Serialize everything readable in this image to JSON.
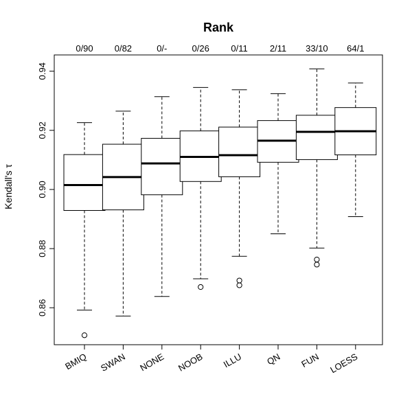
{
  "chart_data": {
    "type": "boxplot",
    "title": "Rank",
    "ylabel": "Kendall's τ",
    "xlabel": "",
    "ylim": [
      0.8475,
      0.9455
    ],
    "yticks": [
      "0.86",
      "0.88",
      "0.90",
      "0.92",
      "0.94"
    ],
    "categories": [
      "BMIQ",
      "SWAN",
      "NONE",
      "NOOB",
      "ILLU",
      "QN",
      "FUN",
      "LOESS"
    ],
    "top_labels": [
      "0/90",
      "0/82",
      "0/-",
      "0/26",
      "0/11",
      "2/11",
      "33/10",
      "64/1"
    ],
    "boxes": [
      {
        "whisker_low": 0.8592,
        "q1": 0.8929,
        "median": 0.9015,
        "q3": 0.9118,
        "whisker_high": 0.9226,
        "outliers": [
          0.8507
        ]
      },
      {
        "whisker_low": 0.8572,
        "q1": 0.8931,
        "median": 0.9042,
        "q3": 0.9153,
        "whisker_high": 0.9265,
        "outliers": []
      },
      {
        "whisker_low": 0.8638,
        "q1": 0.8982,
        "median": 0.9088,
        "q3": 0.9173,
        "whisker_high": 0.9314,
        "outliers": []
      },
      {
        "whisker_low": 0.8698,
        "q1": 0.9027,
        "median": 0.911,
        "q3": 0.9198,
        "whisker_high": 0.9345,
        "outliers": [
          0.867
        ]
      },
      {
        "whisker_low": 0.8774,
        "q1": 0.9043,
        "median": 0.9116,
        "q3": 0.9211,
        "whisker_high": 0.9337,
        "outliers": [
          0.8692,
          0.8676
        ]
      },
      {
        "whisker_low": 0.885,
        "q1": 0.9092,
        "median": 0.9165,
        "q3": 0.9233,
        "whisker_high": 0.9324,
        "outliers": []
      },
      {
        "whisker_low": 0.8802,
        "q1": 0.9101,
        "median": 0.9195,
        "q3": 0.9251,
        "whisker_high": 0.9408,
        "outliers": [
          0.8763,
          0.8746
        ]
      },
      {
        "whisker_low": 0.8908,
        "q1": 0.9117,
        "median": 0.9197,
        "q3": 0.9277,
        "whisker_high": 0.936,
        "outliers": []
      }
    ]
  }
}
